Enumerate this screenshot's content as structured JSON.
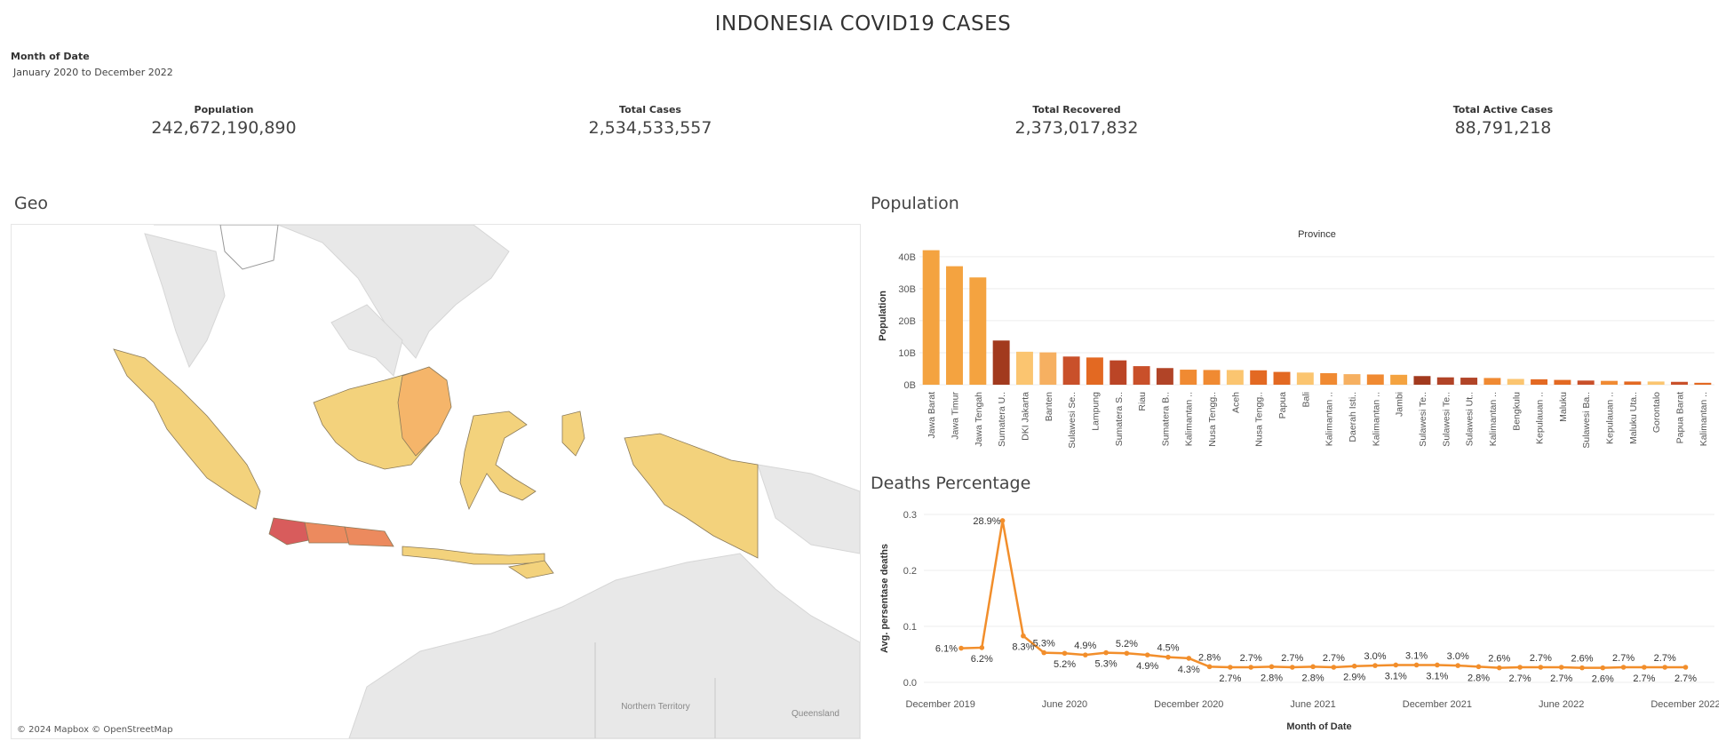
{
  "dashboard": {
    "title": "INDONESIA COVID19 CASES",
    "filter_label": "Month of Date",
    "filter_value": "January 2020 to December 2022"
  },
  "kpis": [
    {
      "label": "Population",
      "value": "242,672,190,890"
    },
    {
      "label": "Total Cases",
      "value": "2,534,533,557"
    },
    {
      "label": "Total Recovered",
      "value": "2,373,017,832"
    },
    {
      "label": "Total Active Cases",
      "value": "88,791,218"
    }
  ],
  "geo": {
    "title": "Geo",
    "attribution": "© 2024 Mapbox © OpenStreetMap",
    "place_labels": [
      "Northern Territory",
      "Queensland"
    ],
    "colors": {
      "land": "#e8e8e8",
      "sea": "#ffffff",
      "low": "#f3d27c",
      "mid": "#f5b56a",
      "high": "#d85c5c",
      "upper_mid": "#ec8a5e"
    }
  },
  "population_panel": {
    "title": "Population"
  },
  "deaths_panel": {
    "title": "Deaths Percentage"
  },
  "chart_data": [
    {
      "type": "bar",
      "title": "Province",
      "ylabel": "Population",
      "xlabel": "",
      "ylim": [
        0,
        43
      ],
      "yticks": [
        "0B",
        "10B",
        "20B",
        "30B",
        "40B"
      ],
      "categories": [
        "Jawa Barat",
        "Jawa Timur",
        "Jawa Tengah",
        "Sumatera U..",
        "DKI Jakarta",
        "Banten",
        "Sulawesi Se..",
        "Lampung",
        "Sumatera S..",
        "Riau",
        "Sumatera B..",
        "Kalimantan ..",
        "Nusa Tengg..",
        "Aceh",
        "Nusa Tengg..",
        "Papua",
        "Bali",
        "Kalimantan ..",
        "Daerah Isti..",
        "Kalimantan ..",
        "Jambi",
        "Sulawesi Te..",
        "Sulawesi Te..",
        "Sulawesi Ut..",
        "Kalimantan ..",
        "Bengkulu",
        "Kepulauan ..",
        "Maluku",
        "Sulawesi Ba..",
        "Kepulauan ..",
        "Maluku Uta..",
        "Gorontalo",
        "Papua Barat",
        "Kalimantan .."
      ],
      "values": [
        42,
        37,
        33.5,
        13.8,
        10.3,
        10.1,
        8.8,
        8.5,
        7.6,
        5.8,
        5.2,
        4.7,
        4.6,
        4.6,
        4.5,
        4.0,
        3.8,
        3.6,
        3.3,
        3.2,
        3.1,
        2.7,
        2.3,
        2.2,
        2.1,
        1.8,
        1.7,
        1.5,
        1.3,
        1.2,
        1.0,
        1.0,
        0.9,
        0.6
      ],
      "colors": [
        "#f4a340",
        "#f4a340",
        "#f4a340",
        "#a23a1e",
        "#fbc570",
        "#f6b061",
        "#c9502a",
        "#e36922",
        "#bb4526",
        "#c9502a",
        "#b14427",
        "#f08a32",
        "#f08a32",
        "#fbc570",
        "#e36922",
        "#e36922",
        "#fbc570",
        "#f08a32",
        "#f6b061",
        "#f08a32",
        "#f4a340",
        "#a23a1e",
        "#b14427",
        "#b14427",
        "#f08a32",
        "#fbc570",
        "#e36922",
        "#e36922",
        "#c9502a",
        "#f08a32",
        "#e36922",
        "#fbc570",
        "#c9502a",
        "#e36922"
      ]
    },
    {
      "type": "line",
      "title": "",
      "xlabel": "Month of Date",
      "ylabel": "Avg. persentase deaths",
      "ylim": [
        0,
        0.3
      ],
      "yticks": [
        "0.0",
        "0.1",
        "0.2",
        "0.3"
      ],
      "xticks": [
        "December 2019",
        "June 2020",
        "December 2020",
        "June 2021",
        "December 2021",
        "June 2022",
        "December 2022"
      ],
      "x": [
        "2020-01",
        "2020-02",
        "2020-03",
        "2020-04",
        "2020-05",
        "2020-06",
        "2020-07",
        "2020-08",
        "2020-09",
        "2020-10",
        "2020-11",
        "2020-12",
        "2021-01",
        "2021-02",
        "2021-03",
        "2021-04",
        "2021-05",
        "2021-06",
        "2021-07",
        "2021-08",
        "2021-09",
        "2021-10",
        "2021-11",
        "2021-12",
        "2022-01",
        "2022-02",
        "2022-03",
        "2022-04",
        "2022-05",
        "2022-06",
        "2022-07",
        "2022-08",
        "2022-09",
        "2022-10",
        "2022-11",
        "2022-12"
      ],
      "values": [
        0.061,
        0.062,
        0.289,
        0.083,
        0.053,
        0.052,
        0.049,
        0.053,
        0.052,
        0.049,
        0.045,
        0.043,
        0.028,
        0.027,
        0.027,
        0.028,
        0.027,
        0.028,
        0.027,
        0.029,
        0.03,
        0.031,
        0.031,
        0.031,
        0.03,
        0.028,
        0.026,
        0.027,
        0.027,
        0.027,
        0.026,
        0.026,
        0.027,
        0.027,
        0.027,
        0.027
      ],
      "labels": [
        "6.1%",
        "6.2%",
        "28.9%",
        "8.3%",
        "5.3%",
        "5.2%",
        "4.9%",
        "5.3%",
        "5.2%",
        "4.9%",
        "4.5%",
        "4.3%",
        "2.8%",
        "2.7%",
        "2.7%",
        "2.8%",
        "2.7%",
        "2.8%",
        "2.7%",
        "2.9%",
        "3.0%",
        "3.1%",
        "3.1%",
        "3.1%",
        "3.0%",
        "2.8%",
        "2.6%",
        "2.7%",
        "2.7%",
        "2.7%",
        "2.6%",
        "2.6%",
        "2.7%",
        "2.7%",
        "2.7%",
        "2.7%"
      ],
      "color": "#f28e2b"
    }
  ]
}
